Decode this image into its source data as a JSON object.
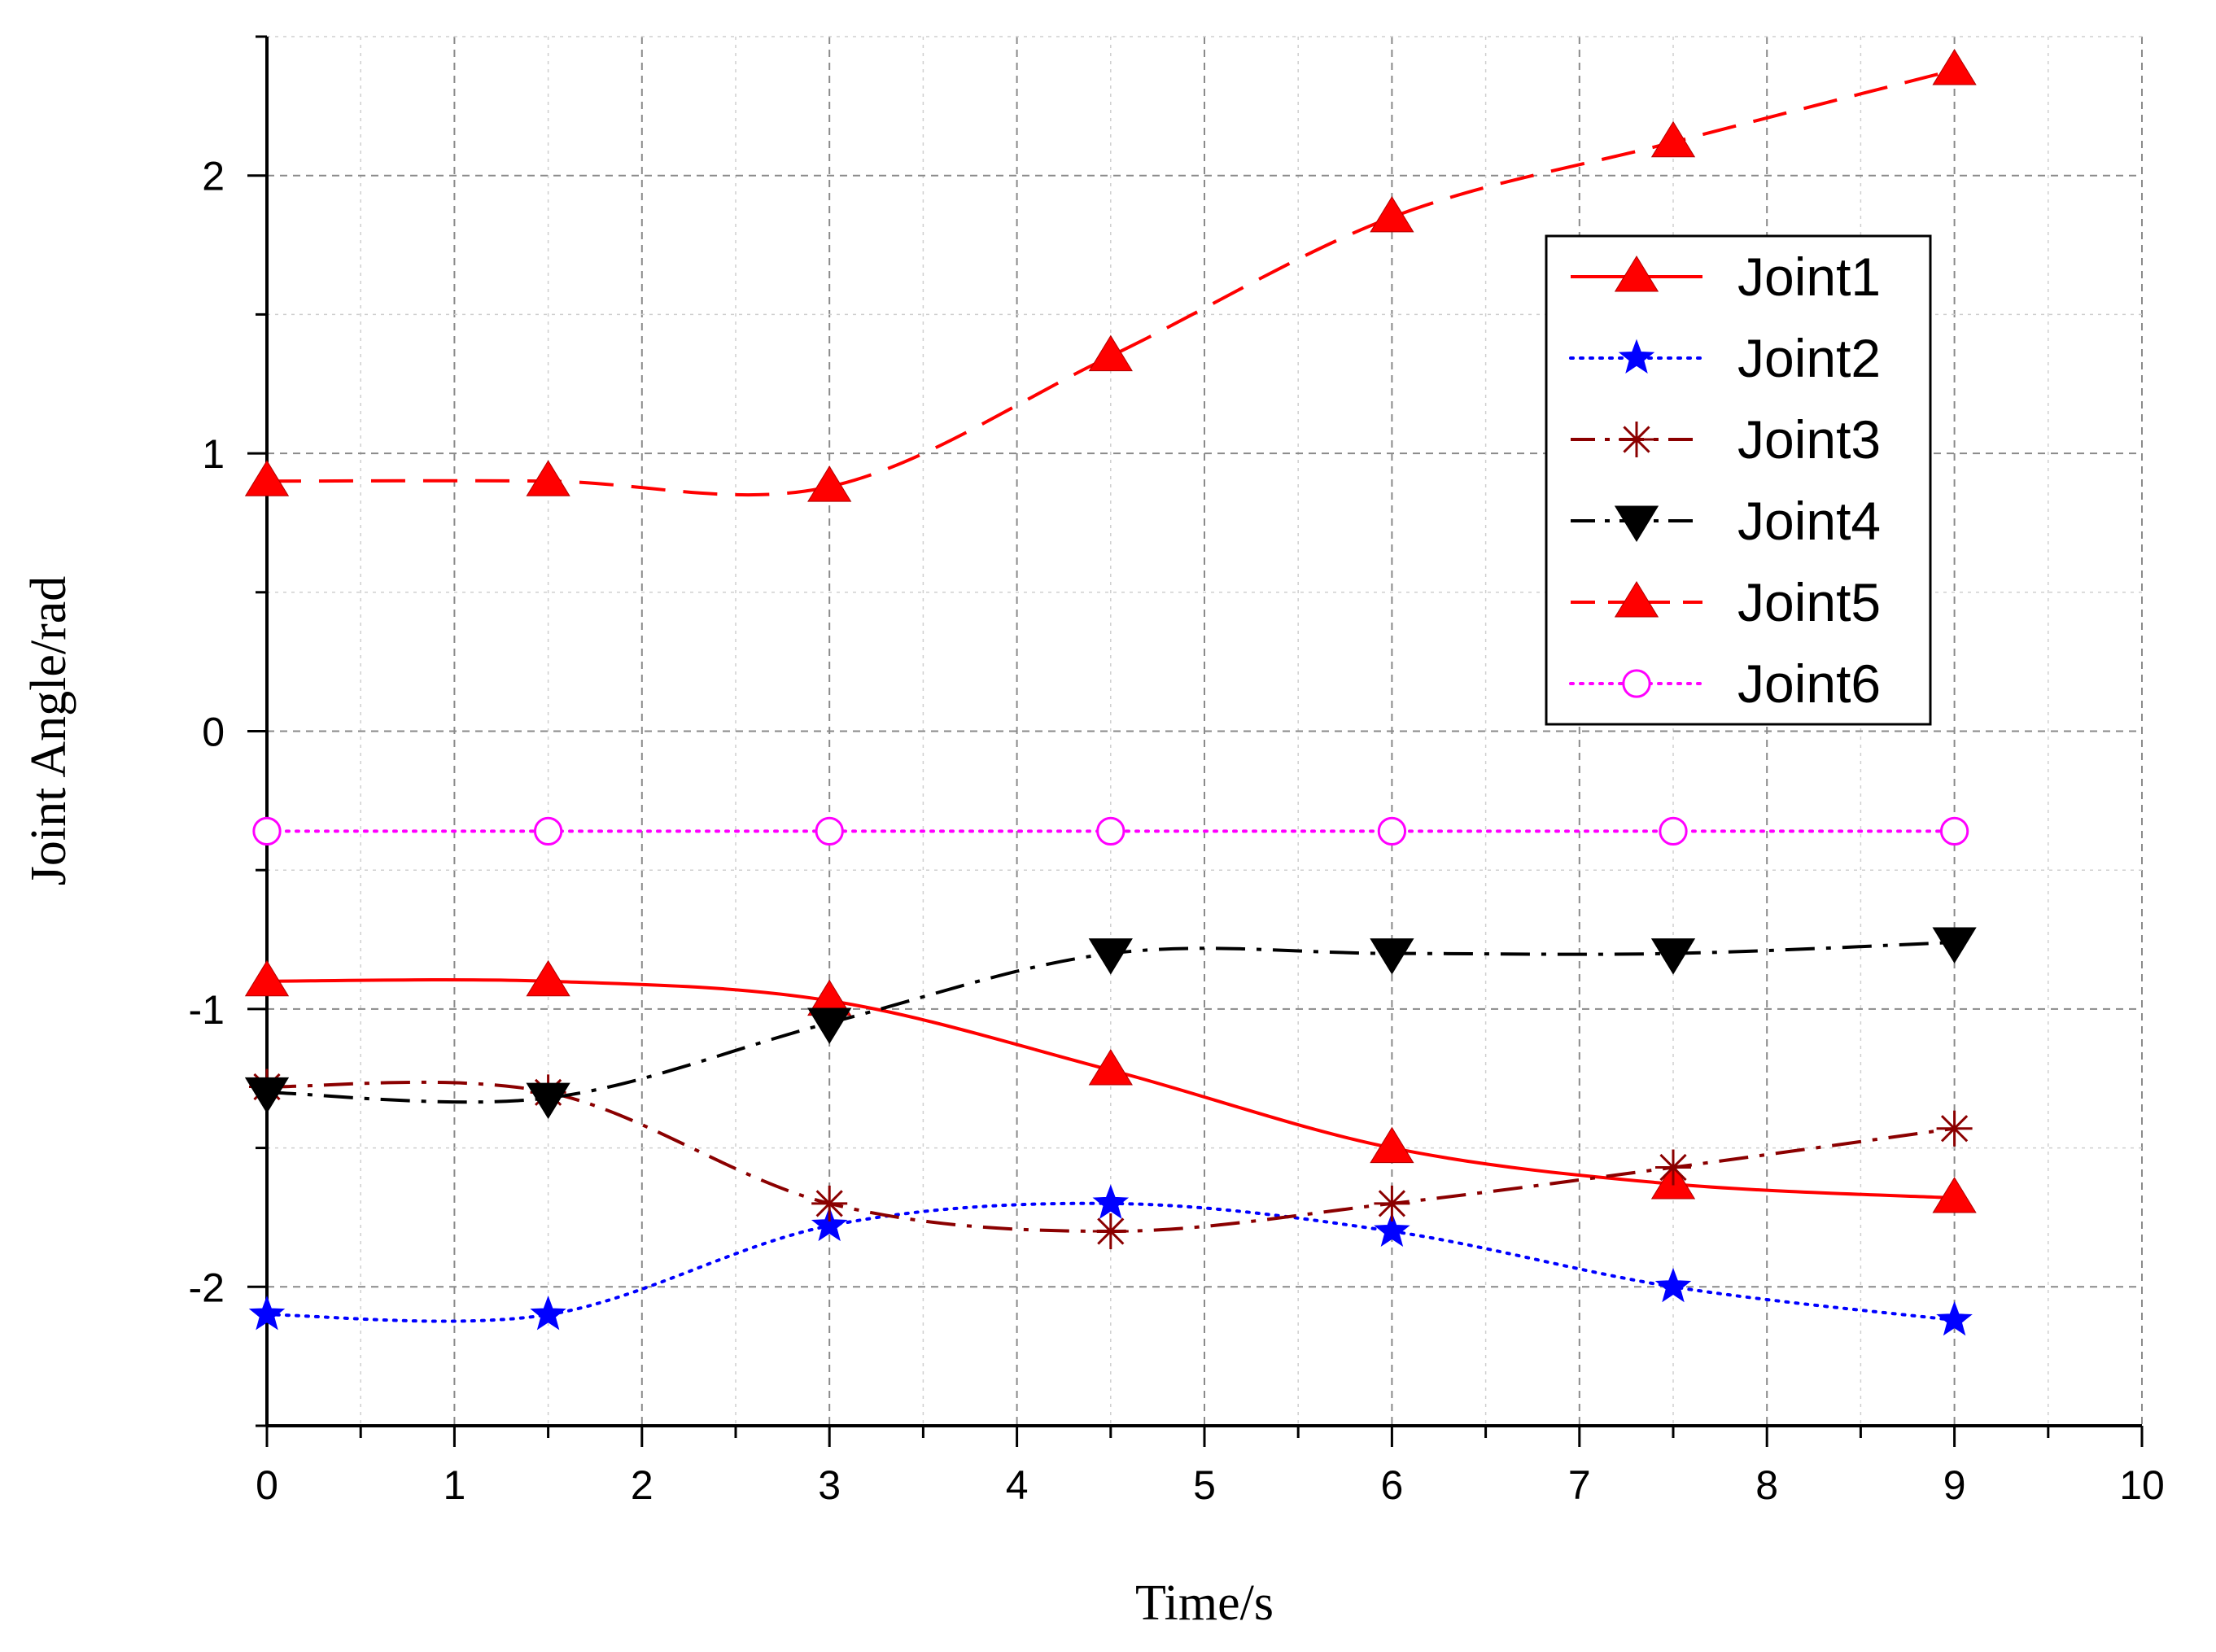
{
  "chart_data": {
    "type": "line",
    "title": "",
    "xlabel": "Time/s",
    "ylabel": "Joint Angle/rad",
    "xlim": [
      0,
      10
    ],
    "ylim": [
      -2.5,
      2.5
    ],
    "x_ticks": [
      0,
      1,
      2,
      3,
      4,
      5,
      6,
      7,
      8,
      9,
      10
    ],
    "x_tick_labels": [
      "0",
      "1",
      "2",
      "3",
      "4",
      "5",
      "6",
      "7",
      "8",
      "9",
      "10"
    ],
    "y_ticks": [
      -2,
      -1,
      0,
      1,
      2
    ],
    "y_tick_labels": [
      "-2",
      "-1",
      "0",
      "1",
      "2"
    ],
    "grid": true,
    "legend_position": "top-right",
    "x": [
      0,
      1.5,
      3,
      4.5,
      6,
      7.5,
      9
    ],
    "series": [
      {
        "name": "Joint1",
        "values": [
          -0.9,
          -0.9,
          -0.97,
          -1.22,
          -1.5,
          -1.63,
          -1.68
        ],
        "color": "#ff0000",
        "line_style": "solid",
        "marker": "triangle-up"
      },
      {
        "name": "Joint2",
        "values": [
          -2.1,
          -2.1,
          -1.78,
          -1.7,
          -1.8,
          -2.0,
          -2.12
        ],
        "color": "#0000ff",
        "line_style": "dotted",
        "marker": "star"
      },
      {
        "name": "Joint3",
        "values": [
          -1.28,
          -1.3,
          -1.7,
          -1.8,
          -1.7,
          -1.57,
          -1.43
        ],
        "color": "#8b0000",
        "line_style": "dash-dot",
        "marker": "asterisk"
      },
      {
        "name": "Joint4",
        "values": [
          -1.3,
          -1.32,
          -1.05,
          -0.8,
          -0.8,
          -0.8,
          -0.76
        ],
        "color": "#000000",
        "line_style": "dash-dot",
        "marker": "triangle-down"
      },
      {
        "name": "Joint5",
        "values": [
          0.9,
          0.9,
          0.88,
          1.35,
          1.85,
          2.12,
          2.38
        ],
        "color": "#ff0000",
        "line_style": "dashed",
        "marker": "triangle-up"
      },
      {
        "name": "Joint6",
        "values": [
          -0.36,
          -0.36,
          -0.36,
          -0.36,
          -0.36,
          -0.36,
          -0.36
        ],
        "color": "#ff00ff",
        "line_style": "dotted",
        "marker": "circle"
      }
    ]
  }
}
